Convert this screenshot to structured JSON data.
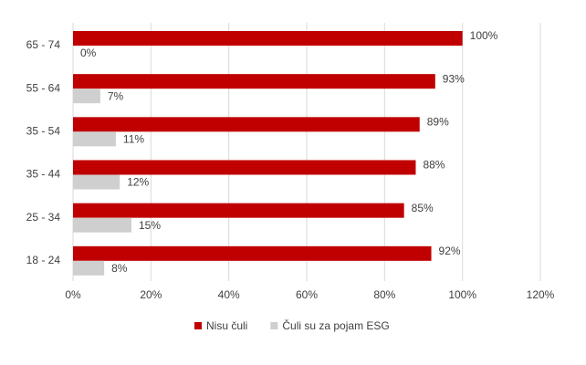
{
  "chart_data": {
    "type": "hbar",
    "categories": [
      "65 - 74",
      "55 - 64",
      "35 - 54",
      "35 - 44",
      "25 - 34",
      "18 - 24"
    ],
    "series": [
      {
        "name": "Nisu čuli",
        "color": "#c00000",
        "values": [
          100,
          93,
          89,
          88,
          85,
          92
        ],
        "value_labels": [
          "100%",
          "93%",
          "89%",
          "88%",
          "85%",
          "92%"
        ]
      },
      {
        "name": "Čuli su za pojam ESG",
        "color": "#cfcfcf",
        "values": [
          0,
          7,
          11,
          12,
          15,
          8
        ],
        "value_labels": [
          "0%",
          "7%",
          "11%",
          "12%",
          "15%",
          "8%"
        ]
      }
    ],
    "xlim": [
      0,
      120
    ],
    "xticks": [
      {
        "value": 0,
        "label": "0%"
      },
      {
        "value": 20,
        "label": "20%"
      },
      {
        "value": 40,
        "label": "40%"
      },
      {
        "value": 60,
        "label": "60%"
      },
      {
        "value": 80,
        "label": "80%"
      },
      {
        "value": 100,
        "label": "100%"
      },
      {
        "value": 120,
        "label": "120%"
      }
    ],
    "grid": true,
    "legend": "bottom"
  }
}
